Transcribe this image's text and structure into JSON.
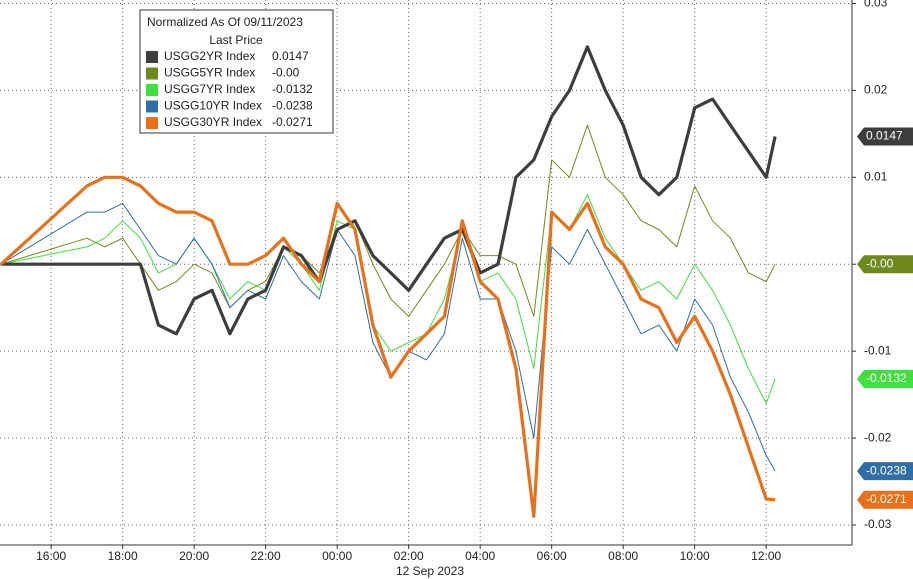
{
  "chart_data": {
    "type": "line",
    "legend_title": "Normalized As Of 09/11/2023",
    "legend_subtitle": "Last Price",
    "date_label": "12 Sep 2023",
    "x": [
      14.6,
      17,
      17.5,
      18,
      18.5,
      19,
      19.5,
      20,
      20.5,
      21,
      21.5,
      22,
      22.5,
      23,
      23.5,
      24,
      24.5,
      25,
      25.5,
      26,
      26.5,
      27,
      27.5,
      28,
      28.5,
      29,
      29.5,
      30,
      30.5,
      31,
      31.5,
      32,
      32.5,
      33,
      33.5,
      34,
      34.5,
      35,
      35.5,
      36,
      36.25
    ],
    "xlim": [
      14.57,
      38.4
    ],
    "xticks": [
      {
        "value": 16,
        "label": "16:00"
      },
      {
        "value": 18,
        "label": "18:00"
      },
      {
        "value": 20,
        "label": "20:00"
      },
      {
        "value": 22,
        "label": "22:00"
      },
      {
        "value": 24,
        "label": "00:00"
      },
      {
        "value": 26,
        "label": "02:00"
      },
      {
        "value": 28,
        "label": "04:00"
      },
      {
        "value": 30,
        "label": "06:00"
      },
      {
        "value": 32,
        "label": "08:00"
      },
      {
        "value": 34,
        "label": "10:00"
      },
      {
        "value": 36,
        "label": "12:00"
      }
    ],
    "ylim": [
      -0.0323,
      0.0304
    ],
    "yticks": [
      -0.03,
      -0.02,
      -0.01,
      0,
      0.01,
      0.02,
      0.03
    ],
    "grid": true,
    "series": [
      {
        "name": "USGG2YR Index",
        "color": "#3d3d3d",
        "last_label": "0.0147",
        "values": [
          0,
          0,
          0,
          0,
          0,
          -0.007,
          -0.008,
          -0.004,
          -0.003,
          -0.008,
          -0.004,
          -0.003,
          0.002,
          0.001,
          -0.002,
          0.004,
          0.005,
          0.001,
          -0.001,
          -0.003,
          0.0,
          0.003,
          0.004,
          -0.001,
          0.0,
          0.01,
          0.012,
          0.017,
          0.02,
          0.025,
          0.02,
          0.016,
          0.01,
          0.008,
          0.01,
          0.018,
          0.019,
          0.016,
          0.013,
          0.01,
          0.0147
        ]
      },
      {
        "name": "USGG5YR Index",
        "color": "#6f8a1c",
        "last_label": "-0.00",
        "values": [
          0,
          0.003,
          0.002,
          0.003,
          0.0,
          -0.003,
          -0.002,
          0.0,
          -0.001,
          -0.005,
          -0.003,
          -0.002,
          0.002,
          0.001,
          -0.001,
          0.004,
          0.005,
          0.0,
          -0.004,
          -0.006,
          -0.003,
          0.0,
          0.004,
          0.001,
          0.001,
          0.0,
          -0.006,
          0.012,
          0.01,
          0.016,
          0.01,
          0.008,
          0.005,
          0.004,
          0.002,
          0.009,
          0.005,
          0.003,
          -0.001,
          -0.002,
          0.0
        ]
      },
      {
        "name": "USGG7YR Index",
        "color": "#3ee03e",
        "last_label": "-0.0132",
        "values": [
          0,
          0.002,
          0.003,
          0.005,
          0.003,
          -0.001,
          0.0,
          0.003,
          0.0,
          -0.004,
          -0.002,
          -0.003,
          0.002,
          0.0,
          -0.003,
          0.005,
          0.004,
          -0.007,
          -0.01,
          -0.009,
          -0.008,
          -0.004,
          0.004,
          -0.002,
          -0.001,
          -0.004,
          -0.012,
          0.006,
          0.004,
          0.008,
          0.003,
          0.0,
          -0.003,
          -0.002,
          -0.004,
          0.0,
          -0.003,
          -0.007,
          -0.012,
          -0.016,
          -0.0132
        ]
      },
      {
        "name": "USGG10YR Index",
        "color": "#2f6ea6",
        "last_label": "-0.0238",
        "values": [
          0,
          0.006,
          0.006,
          0.007,
          0.004,
          0.001,
          0.0,
          0.003,
          0.0,
          -0.005,
          -0.003,
          -0.004,
          0.001,
          -0.002,
          -0.004,
          0.004,
          0.001,
          -0.009,
          -0.013,
          -0.01,
          -0.011,
          -0.008,
          0.003,
          -0.004,
          -0.004,
          -0.01,
          -0.02,
          0.002,
          0.0,
          0.004,
          0.0,
          -0.004,
          -0.008,
          -0.007,
          -0.01,
          -0.004,
          -0.007,
          -0.013,
          -0.017,
          -0.022,
          -0.0238
        ]
      },
      {
        "name": "USGG30YR Index",
        "color": "#e8701a",
        "last_label": "-0.0271",
        "values": [
          0,
          0.009,
          0.01,
          0.01,
          0.009,
          0.007,
          0.006,
          0.006,
          0.005,
          0.0,
          0.0,
          0.001,
          0.003,
          0.0,
          -0.002,
          0.007,
          0.004,
          -0.007,
          -0.013,
          -0.01,
          -0.008,
          -0.006,
          0.005,
          -0.002,
          -0.004,
          -0.012,
          -0.029,
          0.006,
          0.004,
          0.007,
          0.002,
          0.0,
          -0.004,
          -0.005,
          -0.009,
          -0.006,
          -0.01,
          -0.015,
          -0.021,
          -0.027,
          -0.0271
        ]
      }
    ]
  }
}
